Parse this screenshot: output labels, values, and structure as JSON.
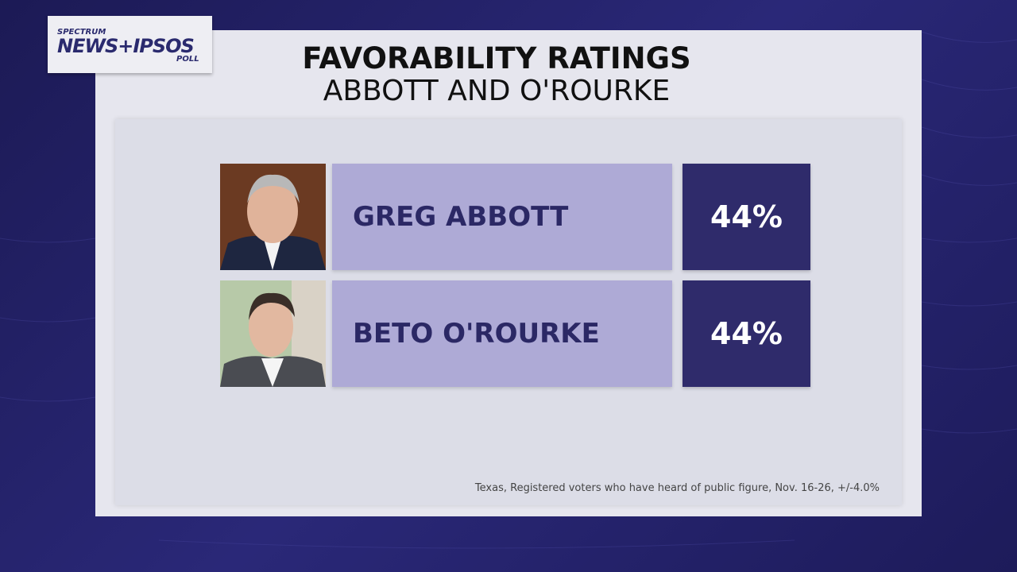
{
  "logo": {
    "top": "SPECTRUM",
    "main": "NEWS+IPSOS",
    "bottom": "POLL"
  },
  "title": "FAVORABILITY RATINGS",
  "subtitle": "ABBOTT AND O'ROURKE",
  "rows": [
    {
      "name": "GREG ABBOTT",
      "value": "44%"
    },
    {
      "name": "BETO O'ROURKE",
      "value": "44%"
    }
  ],
  "footnote": "Texas, Registered voters who have heard of public figure, Nov. 16-26, +/-4.0%"
}
